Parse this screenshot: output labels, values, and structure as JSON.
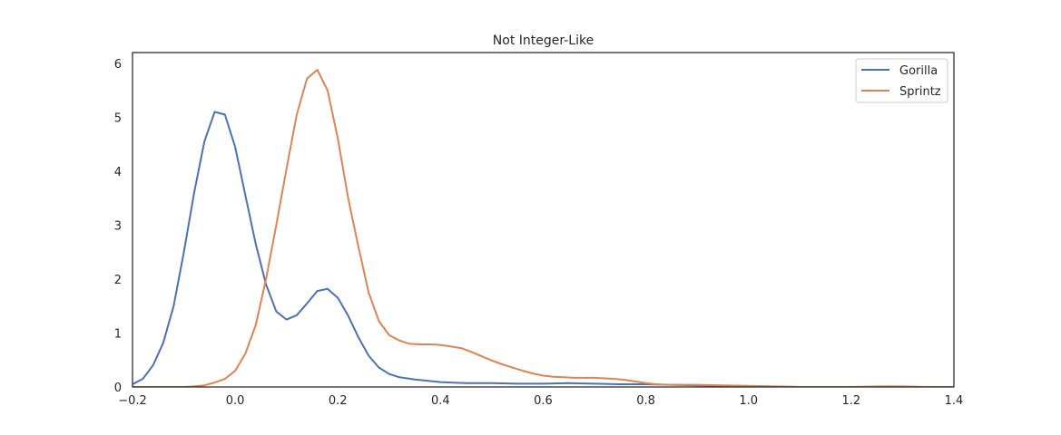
{
  "chart_data": {
    "type": "line",
    "title": "Not Integer-Like",
    "xlabel": "",
    "ylabel": "",
    "xlim": [
      -0.2,
      1.4
    ],
    "ylim": [
      0,
      6.2
    ],
    "xticks": [
      -0.2,
      0.0,
      0.2,
      0.4,
      0.6,
      0.8,
      1.0,
      1.2,
      1.4
    ],
    "xtick_labels": [
      "−0.2",
      "0.0",
      "0.2",
      "0.4",
      "0.6",
      "0.8",
      "1.0",
      "1.2",
      "1.4"
    ],
    "yticks": [
      0,
      1,
      2,
      3,
      4,
      5,
      6
    ],
    "ytick_labels": [
      "0",
      "1",
      "2",
      "3",
      "4",
      "5",
      "6"
    ],
    "grid": false,
    "legend_position": "top-right",
    "series": [
      {
        "name": "Gorilla",
        "color": "#4c72b0",
        "points": [
          [
            -0.2,
            0.05
          ],
          [
            -0.18,
            0.15
          ],
          [
            -0.16,
            0.4
          ],
          [
            -0.14,
            0.82
          ],
          [
            -0.12,
            1.5
          ],
          [
            -0.1,
            2.5
          ],
          [
            -0.08,
            3.6
          ],
          [
            -0.06,
            4.55
          ],
          [
            -0.04,
            5.1
          ],
          [
            -0.02,
            5.05
          ],
          [
            0.0,
            4.45
          ],
          [
            0.02,
            3.55
          ],
          [
            0.04,
            2.65
          ],
          [
            0.06,
            1.9
          ],
          [
            0.08,
            1.4
          ],
          [
            0.1,
            1.25
          ],
          [
            0.12,
            1.33
          ],
          [
            0.14,
            1.55
          ],
          [
            0.16,
            1.78
          ],
          [
            0.18,
            1.82
          ],
          [
            0.2,
            1.65
          ],
          [
            0.22,
            1.32
          ],
          [
            0.24,
            0.92
          ],
          [
            0.26,
            0.58
          ],
          [
            0.28,
            0.36
          ],
          [
            0.3,
            0.24
          ],
          [
            0.32,
            0.18
          ],
          [
            0.35,
            0.14
          ],
          [
            0.4,
            0.09
          ],
          [
            0.45,
            0.07
          ],
          [
            0.5,
            0.07
          ],
          [
            0.55,
            0.06
          ],
          [
            0.6,
            0.06
          ],
          [
            0.65,
            0.07
          ],
          [
            0.7,
            0.06
          ],
          [
            0.75,
            0.05
          ],
          [
            0.8,
            0.05
          ],
          [
            0.85,
            0.04
          ],
          [
            0.9,
            0.03
          ],
          [
            0.95,
            0.02
          ],
          [
            1.0,
            0.01
          ],
          [
            1.1,
            0.0
          ],
          [
            1.2,
            0.0
          ],
          [
            1.3,
            0.0
          ],
          [
            1.4,
            0.0
          ]
        ]
      },
      {
        "name": "Sprintz",
        "color": "#dd8452",
        "points": [
          [
            -0.2,
            0.0
          ],
          [
            -0.1,
            0.0
          ],
          [
            -0.08,
            0.01
          ],
          [
            -0.06,
            0.03
          ],
          [
            -0.04,
            0.08
          ],
          [
            -0.02,
            0.15
          ],
          [
            0.0,
            0.3
          ],
          [
            0.02,
            0.62
          ],
          [
            0.04,
            1.15
          ],
          [
            0.06,
            2.0
          ],
          [
            0.08,
            3.0
          ],
          [
            0.1,
            4.05
          ],
          [
            0.12,
            5.05
          ],
          [
            0.14,
            5.72
          ],
          [
            0.16,
            5.88
          ],
          [
            0.18,
            5.5
          ],
          [
            0.2,
            4.6
          ],
          [
            0.22,
            3.5
          ],
          [
            0.24,
            2.6
          ],
          [
            0.26,
            1.75
          ],
          [
            0.28,
            1.22
          ],
          [
            0.3,
            0.96
          ],
          [
            0.32,
            0.86
          ],
          [
            0.34,
            0.8
          ],
          [
            0.36,
            0.79
          ],
          [
            0.38,
            0.79
          ],
          [
            0.4,
            0.78
          ],
          [
            0.42,
            0.75
          ],
          [
            0.44,
            0.72
          ],
          [
            0.46,
            0.65
          ],
          [
            0.48,
            0.57
          ],
          [
            0.5,
            0.49
          ],
          [
            0.52,
            0.42
          ],
          [
            0.54,
            0.36
          ],
          [
            0.56,
            0.3
          ],
          [
            0.58,
            0.25
          ],
          [
            0.6,
            0.21
          ],
          [
            0.62,
            0.19
          ],
          [
            0.64,
            0.18
          ],
          [
            0.66,
            0.17
          ],
          [
            0.68,
            0.17
          ],
          [
            0.7,
            0.17
          ],
          [
            0.72,
            0.16
          ],
          [
            0.74,
            0.15
          ],
          [
            0.76,
            0.13
          ],
          [
            0.78,
            0.1
          ],
          [
            0.8,
            0.07
          ],
          [
            0.82,
            0.05
          ],
          [
            0.84,
            0.04
          ],
          [
            0.86,
            0.04
          ],
          [
            0.9,
            0.04
          ],
          [
            0.95,
            0.03
          ],
          [
            1.0,
            0.02
          ],
          [
            1.05,
            0.01
          ],
          [
            1.1,
            0.0
          ],
          [
            1.2,
            0.0
          ],
          [
            1.25,
            0.01
          ],
          [
            1.3,
            0.01
          ],
          [
            1.35,
            0.0
          ],
          [
            1.4,
            0.0
          ]
        ]
      }
    ]
  }
}
